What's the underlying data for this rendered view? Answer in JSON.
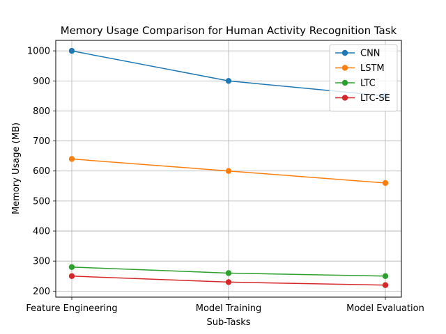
{
  "chart_data": {
    "type": "line",
    "title": "Memory Usage Comparison for Human Activity Recognition Task",
    "xlabel": "Sub-Tasks",
    "ylabel": "Memory Usage (MB)",
    "categories": [
      "Feature Engineering",
      "Model Training",
      "Model Evaluation"
    ],
    "ylim": [
      180,
      1035
    ],
    "yticks": [
      200,
      300,
      400,
      500,
      600,
      700,
      800,
      900,
      1000
    ],
    "grid": true,
    "legend_position": "top-right",
    "series": [
      {
        "name": "CNN",
        "color": "#1f77b4",
        "marker": "circle",
        "values": [
          1000,
          900,
          850
        ]
      },
      {
        "name": "LSTM",
        "color": "#ff7f0e",
        "marker": "circle",
        "values": [
          640,
          600,
          560
        ]
      },
      {
        "name": "LTC",
        "color": "#2ca02c",
        "marker": "circle",
        "values": [
          280,
          260,
          250
        ]
      },
      {
        "name": "LTC-SE",
        "color": "#d62728",
        "marker": "circle",
        "values": [
          250,
          230,
          220
        ]
      }
    ]
  }
}
